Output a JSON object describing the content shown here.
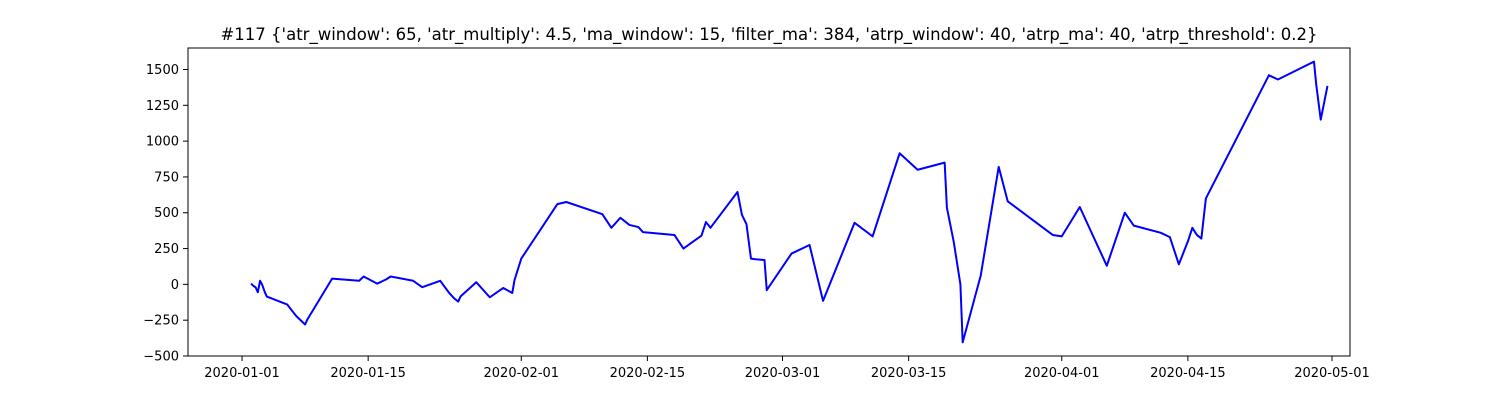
{
  "chart_data": {
    "type": "line",
    "title": "#117 {'atr_window': 65, 'atr_multiply': 4.5, 'ma_window': 15, 'filter_ma': 384, 'atrp_window': 40, 'atrp_ma': 40, 'atrp_threshold': 0.2}",
    "xlabel": "",
    "ylabel": "",
    "x_axis_type": "date",
    "xlim": [
      "2019-12-26",
      "2020-05-03"
    ],
    "ylim": [
      -500,
      1650
    ],
    "x_ticks": [
      {
        "date": "2020-01-01",
        "label": "2020-01-01"
      },
      {
        "date": "2020-01-15",
        "label": "2020-01-15"
      },
      {
        "date": "2020-02-01",
        "label": "2020-02-01"
      },
      {
        "date": "2020-02-15",
        "label": "2020-02-15"
      },
      {
        "date": "2020-03-01",
        "label": "2020-03-01"
      },
      {
        "date": "2020-03-15",
        "label": "2020-03-15"
      },
      {
        "date": "2020-04-01",
        "label": "2020-04-01"
      },
      {
        "date": "2020-04-15",
        "label": "2020-04-15"
      },
      {
        "date": "2020-05-01",
        "label": "2020-05-01"
      }
    ],
    "y_ticks": [
      {
        "value": -500,
        "label": "−500"
      },
      {
        "value": -250,
        "label": "−250"
      },
      {
        "value": 0,
        "label": "0"
      },
      {
        "value": 250,
        "label": "250"
      },
      {
        "value": 500,
        "label": "500"
      },
      {
        "value": 750,
        "label": "750"
      },
      {
        "value": 1000,
        "label": "1000"
      },
      {
        "value": 1250,
        "label": "1250"
      },
      {
        "value": 1500,
        "label": "1500"
      }
    ],
    "grid": false,
    "legend": "none",
    "series": [
      {
        "color": "#0000ff",
        "points": [
          [
            "2020-01-02",
            5
          ],
          [
            "2020-01-02T06:00",
            -10
          ],
          [
            "2020-01-02T12:00",
            -20
          ],
          [
            "2020-01-02T18:00",
            -55
          ],
          [
            "2020-01-03",
            25
          ],
          [
            "2020-01-03T06:00",
            -5
          ],
          [
            "2020-01-03T12:00",
            -50
          ],
          [
            "2020-01-03T18:00",
            -85
          ],
          [
            "2020-01-06",
            -140
          ],
          [
            "2020-01-07",
            -220
          ],
          [
            "2020-01-08",
            -280
          ],
          [
            "2020-01-08T06:00",
            -245
          ],
          [
            "2020-01-11",
            40
          ],
          [
            "2020-01-14",
            25
          ],
          [
            "2020-01-14T12:00",
            55
          ],
          [
            "2020-01-16",
            5
          ],
          [
            "2020-01-17",
            35
          ],
          [
            "2020-01-17T12:00",
            55
          ],
          [
            "2020-01-20",
            25
          ],
          [
            "2020-01-21",
            -20
          ],
          [
            "2020-01-23",
            25
          ],
          [
            "2020-01-24",
            -60
          ],
          [
            "2020-01-24T12:00",
            -95
          ],
          [
            "2020-01-25",
            -120
          ],
          [
            "2020-01-25T06:00",
            -85
          ],
          [
            "2020-01-27",
            15
          ],
          [
            "2020-01-28",
            -55
          ],
          [
            "2020-01-28T12:00",
            -90
          ],
          [
            "2020-01-30",
            -25
          ],
          [
            "2020-01-31",
            -60
          ],
          [
            "2020-01-31T06:00",
            30
          ],
          [
            "2020-02-01",
            180
          ],
          [
            "2020-02-05",
            560
          ],
          [
            "2020-02-06",
            575
          ],
          [
            "2020-02-10",
            490
          ],
          [
            "2020-02-11",
            395
          ],
          [
            "2020-02-12",
            465
          ],
          [
            "2020-02-13",
            415
          ],
          [
            "2020-02-14",
            400
          ],
          [
            "2020-02-14T12:00",
            365
          ],
          [
            "2020-02-18",
            345
          ],
          [
            "2020-02-19",
            250
          ],
          [
            "2020-02-20",
            295
          ],
          [
            "2020-02-21",
            340
          ],
          [
            "2020-02-21T12:00",
            435
          ],
          [
            "2020-02-22",
            395
          ],
          [
            "2020-02-25",
            645
          ],
          [
            "2020-02-25T12:00",
            485
          ],
          [
            "2020-02-26",
            420
          ],
          [
            "2020-02-26T12:00",
            180
          ],
          [
            "2020-02-27",
            175
          ],
          [
            "2020-02-28",
            170
          ],
          [
            "2020-02-28T06:00",
            -40
          ],
          [
            "2020-03-02",
            215
          ],
          [
            "2020-03-04",
            275
          ],
          [
            "2020-03-05",
            15
          ],
          [
            "2020-03-05T12:00",
            -115
          ],
          [
            "2020-03-09",
            430
          ],
          [
            "2020-03-11",
            335
          ],
          [
            "2020-03-14",
            915
          ],
          [
            "2020-03-16",
            800
          ],
          [
            "2020-03-19",
            850
          ],
          [
            "2020-03-19T06:00",
            535
          ],
          [
            "2020-03-20",
            300
          ],
          [
            "2020-03-20T18:00",
            0
          ],
          [
            "2020-03-21",
            -405
          ],
          [
            "2020-03-23",
            60
          ],
          [
            "2020-03-25",
            820
          ],
          [
            "2020-03-26",
            580
          ],
          [
            "2020-03-31",
            345
          ],
          [
            "2020-04-01",
            335
          ],
          [
            "2020-04-03",
            540
          ],
          [
            "2020-04-06",
            130
          ],
          [
            "2020-04-08",
            500
          ],
          [
            "2020-04-09",
            410
          ],
          [
            "2020-04-12",
            360
          ],
          [
            "2020-04-13",
            330
          ],
          [
            "2020-04-14",
            140
          ],
          [
            "2020-04-15",
            300
          ],
          [
            "2020-04-15T12:00",
            395
          ],
          [
            "2020-04-16",
            345
          ],
          [
            "2020-04-16T12:00",
            320
          ],
          [
            "2020-04-17",
            600
          ],
          [
            "2020-04-24",
            1460
          ],
          [
            "2020-04-25",
            1430
          ],
          [
            "2020-04-29",
            1555
          ],
          [
            "2020-04-29T06:00",
            1395
          ],
          [
            "2020-04-29T18:00",
            1150
          ],
          [
            "2020-04-30T12:00",
            1385
          ]
        ]
      }
    ]
  }
}
